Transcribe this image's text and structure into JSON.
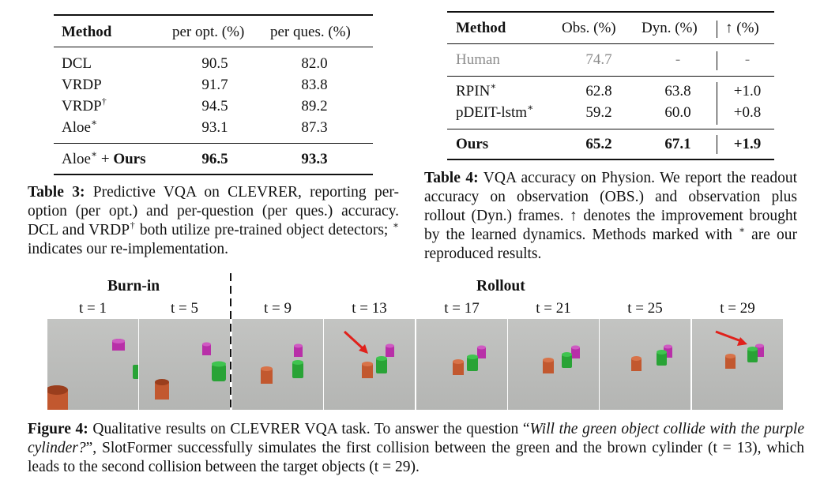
{
  "table3": {
    "headers": [
      "Method",
      "per opt. (%)",
      "per ques. (%)"
    ],
    "rows": [
      {
        "method": "DCL",
        "opt": "90.5",
        "ques": "82.0"
      },
      {
        "method": "VRDP",
        "opt": "91.7",
        "ques": "83.8"
      },
      {
        "method": "VRDP",
        "sup": "†",
        "opt": "94.5",
        "ques": "89.2"
      },
      {
        "method": "Aloe",
        "sup": "∗",
        "opt": "93.1",
        "ques": "87.3"
      }
    ],
    "final": {
      "method": "Aloe",
      "sup": "∗",
      "plus": " + ",
      "ours": "Ours",
      "opt": "96.5",
      "ques": "93.3"
    },
    "caption_label": "Table 3:",
    "caption_1": " Predictive VQA on CLEVRER, reporting per-option (per opt.) and per-question (per ques.) accuracy. DCL and VRDP",
    "caption_sup1": "†",
    "caption_2": " both utilize pre-trained object detectors; ",
    "caption_sup2": "∗",
    "caption_3": " indicates our re-implementation."
  },
  "table4": {
    "headers": [
      "Method",
      "Obs. (%)",
      "Dyn. (%)",
      "↑ (%)"
    ],
    "human": {
      "method": "Human",
      "obs": "74.7",
      "dyn": "-",
      "up": "-"
    },
    "rows": [
      {
        "method": "RPIN",
        "sup": "∗",
        "obs": "62.8",
        "dyn": "63.8",
        "up": "+1.0"
      },
      {
        "method": "pDEIT-lstm",
        "sup": "∗",
        "obs": "59.2",
        "dyn": "60.0",
        "up": "+0.8"
      }
    ],
    "final": {
      "method": "Ours",
      "obs": "65.2",
      "dyn": "67.1",
      "up": "+1.9"
    },
    "caption_label": "Table 4:",
    "caption_1": " VQA accuracy on Physion. We report the readout accuracy on observation (OBS.) and observation plus rollout (Dyn.) frames. ↑ denotes the improvement brought by the learned dynamics. Methods marked with ",
    "caption_sup": "∗",
    "caption_2": " are our reproduced results."
  },
  "figure4": {
    "burnin_label": "Burn-in",
    "rollout_label": "Rollout",
    "frames": [
      "t = 1",
      "t = 5",
      "t = 9",
      "t = 13",
      "t = 17",
      "t = 21",
      "t = 25",
      "t = 29"
    ],
    "caption_label": "Figure 4:",
    "caption_1": " Qualitative results on CLEVRER VQA task. To answer the question “",
    "caption_question": "Will the green object collide with the purple cylinder?",
    "caption_2": "”, SlotFormer successfully simulates the first collision between the green and the brown cylinder (t = 13), which leads to the second collision between the target objects (t = 29)."
  },
  "colors": {
    "purple": "#b82fa8",
    "green": "#29a336",
    "brown": "#c2582f",
    "arrow": "#e0211b"
  }
}
